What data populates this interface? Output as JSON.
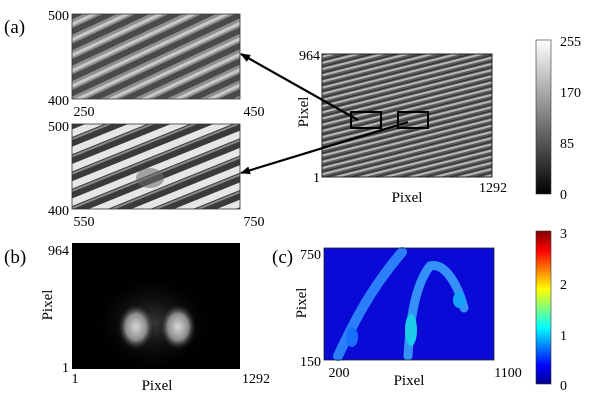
{
  "panel_labels": {
    "a": "(a)",
    "b": "(b)",
    "c": "(c)"
  },
  "axis_title": {
    "pixel": "Pixel"
  },
  "inset_top": {
    "y_max": "500",
    "y_min": "400",
    "x_min": "250",
    "x_max": "450"
  },
  "inset_bottom": {
    "y_max": "500",
    "y_min": "400",
    "x_min": "550",
    "x_max": "750"
  },
  "hologram": {
    "y_max": "964",
    "y_min": "1",
    "x_max": "1292"
  },
  "colorbar_gray": {
    "ticks": [
      "255",
      "170",
      "85",
      "0"
    ],
    "min_color": "#000000",
    "max_color": "#ffffff"
  },
  "panel_b": {
    "y_max": "964",
    "y_min": "1",
    "x_min": "1",
    "x_max": "1292"
  },
  "panel_c": {
    "y_max": "750",
    "y_min": "150",
    "x_min": "200",
    "x_max": "1100"
  },
  "colorbar_jet": {
    "ticks": [
      "3",
      "2",
      "1",
      "0"
    ],
    "stops": [
      "#00008f",
      "#0000ff",
      "#00ffff",
      "#ffff00",
      "#ff0000",
      "#800000"
    ]
  }
}
